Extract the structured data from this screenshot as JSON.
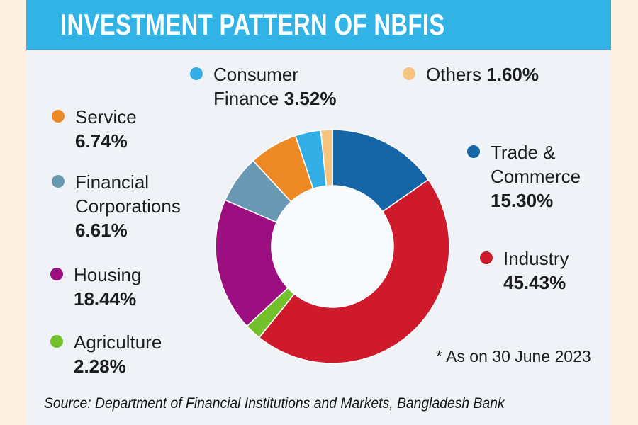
{
  "header": {
    "title": "INVESTMENT PATTERN OF NBFIS"
  },
  "colors": {
    "banner": "#31B3E6",
    "page_background": "#FCF0E2",
    "panel_background": "#EFF3F8"
  },
  "chart_data": {
    "type": "pie",
    "donut": true,
    "title": "INVESTMENT PATTERN OF NBFIS",
    "hole_color": "#F8FBFE",
    "slices": [
      {
        "label": "Trade & Commerce",
        "value": 15.3,
        "color": "#1565A7"
      },
      {
        "label": "Industry",
        "value": 45.43,
        "color": "#CF1A2B"
      },
      {
        "label": "Agriculture",
        "value": 2.28,
        "color": "#72C02C"
      },
      {
        "label": "Housing",
        "value": 18.44,
        "color": "#9B0F80"
      },
      {
        "label": "Financial Corporations",
        "value": 6.61,
        "color": "#6898B2"
      },
      {
        "label": "Service",
        "value": 6.74,
        "color": "#EE8A25"
      },
      {
        "label": "Consumer Finance",
        "value": 3.52,
        "color": "#32AEE4"
      },
      {
        "label": "Others",
        "value": 1.6,
        "color": "#F6C47E"
      }
    ]
  },
  "legend": [
    {
      "label": "Consumer Finance",
      "pct": "3.52%",
      "slice": 6
    },
    {
      "label": "Others",
      "pct": "1.60%",
      "slice": 7
    },
    {
      "label": "Service",
      "pct": "6.74%",
      "slice": 5
    },
    {
      "label": "Financial Corporations",
      "pct": "6.61%",
      "slice": 4
    },
    {
      "label": "Housing",
      "pct": "18.44%",
      "slice": 3
    },
    {
      "label": "Agriculture",
      "pct": "2.28%",
      "slice": 2
    },
    {
      "label": "Trade & Commerce",
      "pct": "15.30%",
      "slice": 0
    },
    {
      "label": "Industry",
      "pct": "45.43%",
      "slice": 1
    }
  ],
  "note": "* As on 30 June 2023",
  "source": "Source: Department of Financial Institutions and Markets, Bangladesh Bank"
}
